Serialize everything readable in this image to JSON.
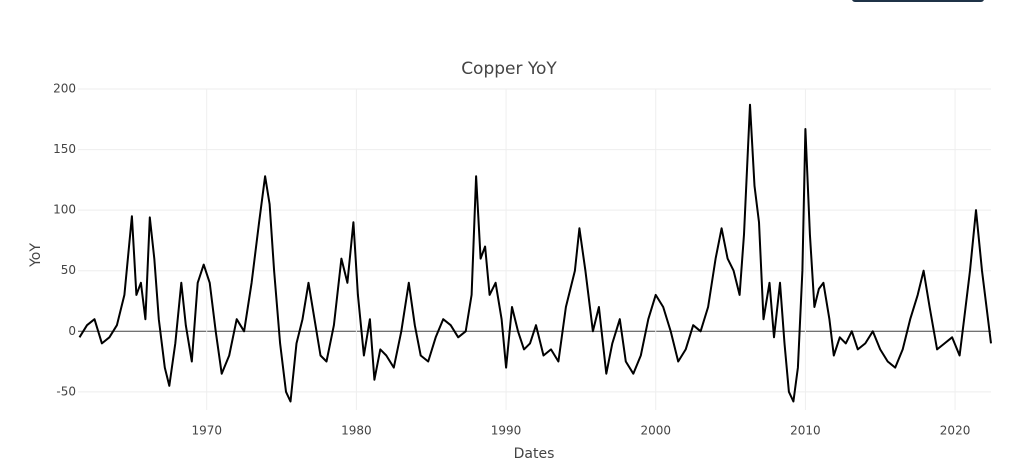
{
  "chart_data": {
    "type": "line",
    "title": "Copper YoY",
    "x_label": "Dates",
    "y_label": "YoY",
    "xlim": [
      1961.4,
      2022.4
    ],
    "ylim": [
      -65,
      200
    ],
    "xticks": [
      1970,
      1980,
      1990,
      2000,
      2010,
      2020
    ],
    "yticks": [
      -50,
      0,
      50,
      100,
      150,
      200
    ],
    "grid": true,
    "x": [
      1961.5,
      1962,
      1962.5,
      1963,
      1963.5,
      1964,
      1964.5,
      1965,
      1965.3,
      1965.6,
      1965.9,
      1966.2,
      1966.5,
      1966.8,
      1967.2,
      1967.5,
      1967.9,
      1968.3,
      1968.6,
      1969,
      1969.4,
      1969.8,
      1970.2,
      1970.6,
      1971,
      1971.5,
      1972,
      1972.5,
      1973,
      1973.5,
      1973.9,
      1974.2,
      1974.5,
      1974.9,
      1975.3,
      1975.6,
      1976,
      1976.4,
      1976.8,
      1977.2,
      1977.6,
      1978,
      1978.5,
      1979,
      1979.4,
      1979.8,
      1980.1,
      1980.5,
      1980.9,
      1981.2,
      1981.6,
      1982,
      1982.5,
      1983,
      1983.5,
      1983.9,
      1984.3,
      1984.8,
      1985.3,
      1985.8,
      1986.3,
      1986.8,
      1987.3,
      1987.7,
      1988,
      1988.3,
      1988.6,
      1988.9,
      1989.3,
      1989.7,
      1990,
      1990.4,
      1990.8,
      1991.2,
      1991.6,
      1992,
      1992.5,
      1993,
      1993.5,
      1994,
      1994.6,
      1994.9,
      1995.3,
      1995.8,
      1996.2,
      1996.7,
      1997.1,
      1997.6,
      1998,
      1998.5,
      1999,
      1999.5,
      2000,
      2000.5,
      2001,
      2001.5,
      2002,
      2002.5,
      2003,
      2003.5,
      2004,
      2004.4,
      2004.8,
      2005.2,
      2005.6,
      2005.9,
      2006.3,
      2006.6,
      2006.9,
      2007.2,
      2007.6,
      2007.9,
      2008.3,
      2008.6,
      2008.9,
      2009.2,
      2009.5,
      2009.8,
      2010,
      2010.3,
      2010.6,
      2010.9,
      2011.2,
      2011.6,
      2011.9,
      2012.3,
      2012.7,
      2013.1,
      2013.5,
      2014,
      2014.5,
      2015,
      2015.5,
      2016,
      2016.5,
      2017,
      2017.5,
      2017.9,
      2018.3,
      2018.8,
      2019.3,
      2019.8,
      2020.3,
      2020.6,
      2021,
      2021.4,
      2021.8,
      2022.1,
      2022.4
    ],
    "series": [
      {
        "name": "YoY",
        "color": "#000000",
        "values": [
          -5,
          5,
          10,
          -10,
          -5,
          5,
          30,
          95,
          30,
          40,
          10,
          94,
          60,
          10,
          -30,
          -45,
          -10,
          40,
          5,
          -25,
          40,
          55,
          40,
          0,
          -35,
          -20,
          10,
          0,
          40,
          90,
          128,
          105,
          50,
          -10,
          -50,
          -58,
          -10,
          10,
          40,
          10,
          -20,
          -25,
          5,
          60,
          40,
          90,
          30,
          -20,
          10,
          -40,
          -15,
          -20,
          -30,
          0,
          40,
          5,
          -20,
          -25,
          -5,
          10,
          5,
          -5,
          0,
          30,
          128,
          60,
          70,
          30,
          40,
          10,
          -30,
          20,
          0,
          -15,
          -10,
          5,
          -20,
          -15,
          -25,
          20,
          50,
          85,
          50,
          0,
          20,
          -35,
          -10,
          10,
          -25,
          -35,
          -20,
          10,
          30,
          20,
          0,
          -25,
          -15,
          5,
          0,
          20,
          60,
          85,
          60,
          50,
          30,
          80,
          187,
          120,
          90,
          10,
          40,
          -5,
          40,
          -10,
          -50,
          -58,
          -30,
          50,
          167,
          80,
          20,
          35,
          40,
          10,
          -20,
          -5,
          -10,
          0,
          -15,
          -10,
          0,
          -15,
          -25,
          -30,
          -15,
          10,
          30,
          50,
          20,
          -15,
          -10,
          -5,
          -20,
          10,
          50,
          100,
          50,
          20,
          -10
        ]
      }
    ]
  }
}
